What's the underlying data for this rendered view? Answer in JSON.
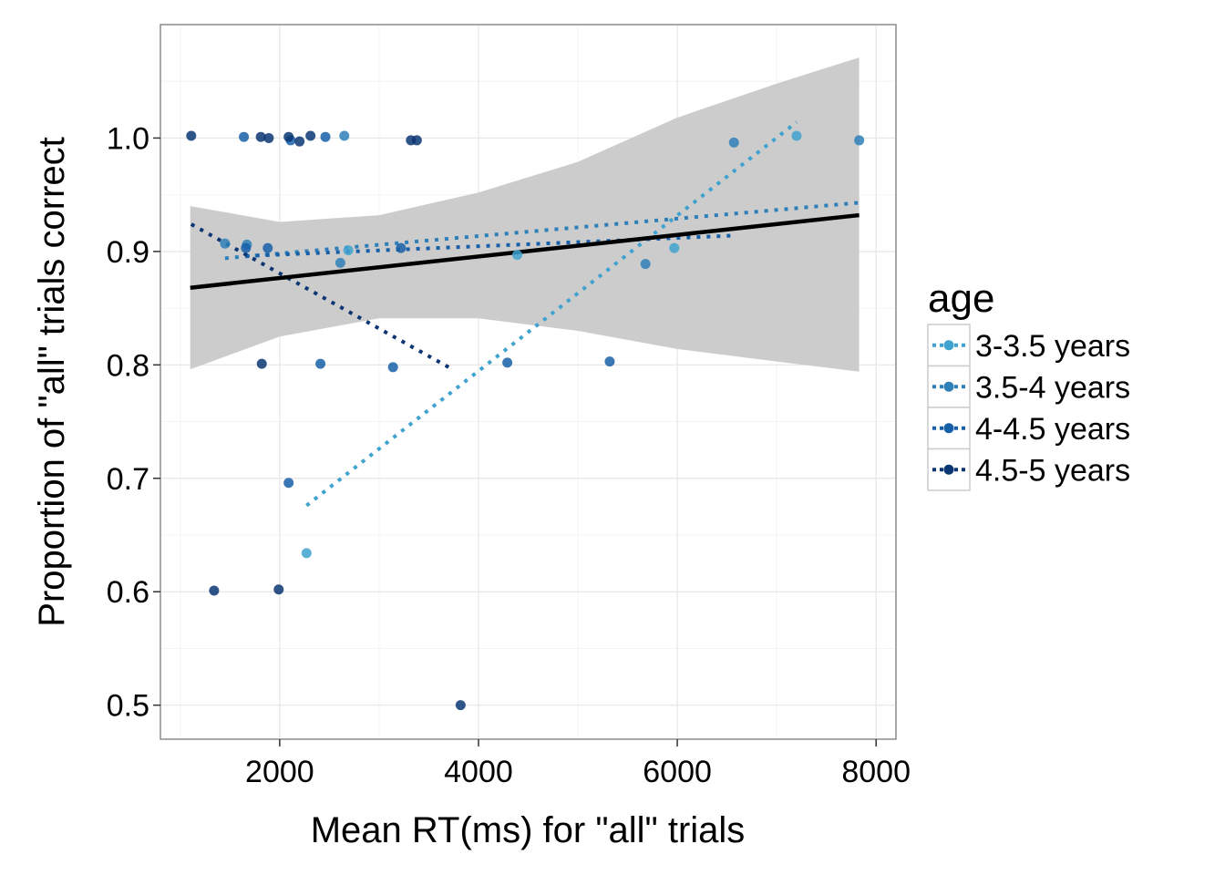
{
  "chart_data": {
    "type": "scatter",
    "title": "",
    "xlabel": "Mean RT(ms) for \"all\" trials",
    "ylabel": "Proportion of \"all\" trials correct",
    "xlim": [
      800,
      8200
    ],
    "ylim": [
      0.47,
      1.1
    ],
    "x_ticks": [
      2000,
      4000,
      6000,
      8000
    ],
    "x_tick_labels": [
      "2000",
      "4000",
      "6000",
      "8000"
    ],
    "y_ticks": [
      0.5,
      0.6,
      0.7,
      0.8,
      0.9,
      1.0
    ],
    "y_tick_labels": [
      "0.5",
      "0.6",
      "0.7",
      "0.8",
      "0.9",
      "1.0"
    ],
    "grid": true,
    "legend": {
      "title": "age",
      "position": "right"
    },
    "overall_fit": {
      "line": {
        "x": [
          1100,
          7830
        ],
        "y": [
          0.868,
          0.932
        ],
        "color": "#000000"
      },
      "band": {
        "x": [
          1100,
          2000,
          3000,
          4000,
          5000,
          6000,
          7000,
          7830
        ],
        "lower": [
          0.796,
          0.825,
          0.841,
          0.841,
          0.83,
          0.814,
          0.803,
          0.794
        ],
        "upper": [
          0.94,
          0.926,
          0.932,
          0.952,
          0.979,
          1.018,
          1.048,
          1.071
        ],
        "color": "#cccccc"
      }
    },
    "series": [
      {
        "name": "3-3.5 years",
        "color": "#3fa2cf",
        "points": [
          {
            "x": 2270,
            "y": 0.634
          },
          {
            "x": 4390,
            "y": 0.897
          },
          {
            "x": 5970,
            "y": 0.903
          },
          {
            "x": 7200,
            "y": 1.002
          },
          {
            "x": 2690,
            "y": 0.901
          }
        ],
        "fit": {
          "x": [
            2270,
            7200
          ],
          "y": [
            0.676,
            1.014
          ]
        }
      },
      {
        "name": "3.5-4 years",
        "color": "#2e7fb8",
        "points": [
          {
            "x": 1450,
            "y": 0.907
          },
          {
            "x": 1670,
            "y": 0.906
          },
          {
            "x": 2610,
            "y": 0.89
          },
          {
            "x": 2650,
            "y": 1.002
          },
          {
            "x": 5680,
            "y": 0.889
          },
          {
            "x": 6570,
            "y": 0.996
          },
          {
            "x": 7830,
            "y": 0.998
          }
        ],
        "fit": {
          "x": [
            1450,
            7830
          ],
          "y": [
            0.894,
            0.943
          ]
        }
      },
      {
        "name": "4-4.5 years",
        "color": "#175fa8",
        "points": [
          {
            "x": 1640,
            "y": 1.001
          },
          {
            "x": 1660,
            "y": 0.903
          },
          {
            "x": 1880,
            "y": 0.903
          },
          {
            "x": 2090,
            "y": 0.696
          },
          {
            "x": 2410,
            "y": 0.801
          },
          {
            "x": 2460,
            "y": 1.001
          },
          {
            "x": 3140,
            "y": 0.798
          },
          {
            "x": 3220,
            "y": 0.903
          },
          {
            "x": 4290,
            "y": 0.802
          },
          {
            "x": 5320,
            "y": 0.803
          },
          {
            "x": 2110,
            "y": 0.998
          }
        ],
        "fit": {
          "x": [
            1660,
            6570
          ],
          "y": [
            0.896,
            0.914
          ]
        }
      },
      {
        "name": "4.5-5 years",
        "color": "#0b3673",
        "points": [
          {
            "x": 1110,
            "y": 1.002
          },
          {
            "x": 1340,
            "y": 0.601
          },
          {
            "x": 1810,
            "y": 1.001
          },
          {
            "x": 1820,
            "y": 0.801
          },
          {
            "x": 1890,
            "y": 1.0
          },
          {
            "x": 1990,
            "y": 0.602
          },
          {
            "x": 2090,
            "y": 1.001
          },
          {
            "x": 2200,
            "y": 0.997
          },
          {
            "x": 2310,
            "y": 1.002
          },
          {
            "x": 3320,
            "y": 0.998
          },
          {
            "x": 3380,
            "y": 0.998
          },
          {
            "x": 3820,
            "y": 0.5
          }
        ],
        "fit": {
          "x": [
            1110,
            3720
          ],
          "y": [
            0.924,
            0.797
          ]
        }
      }
    ]
  }
}
